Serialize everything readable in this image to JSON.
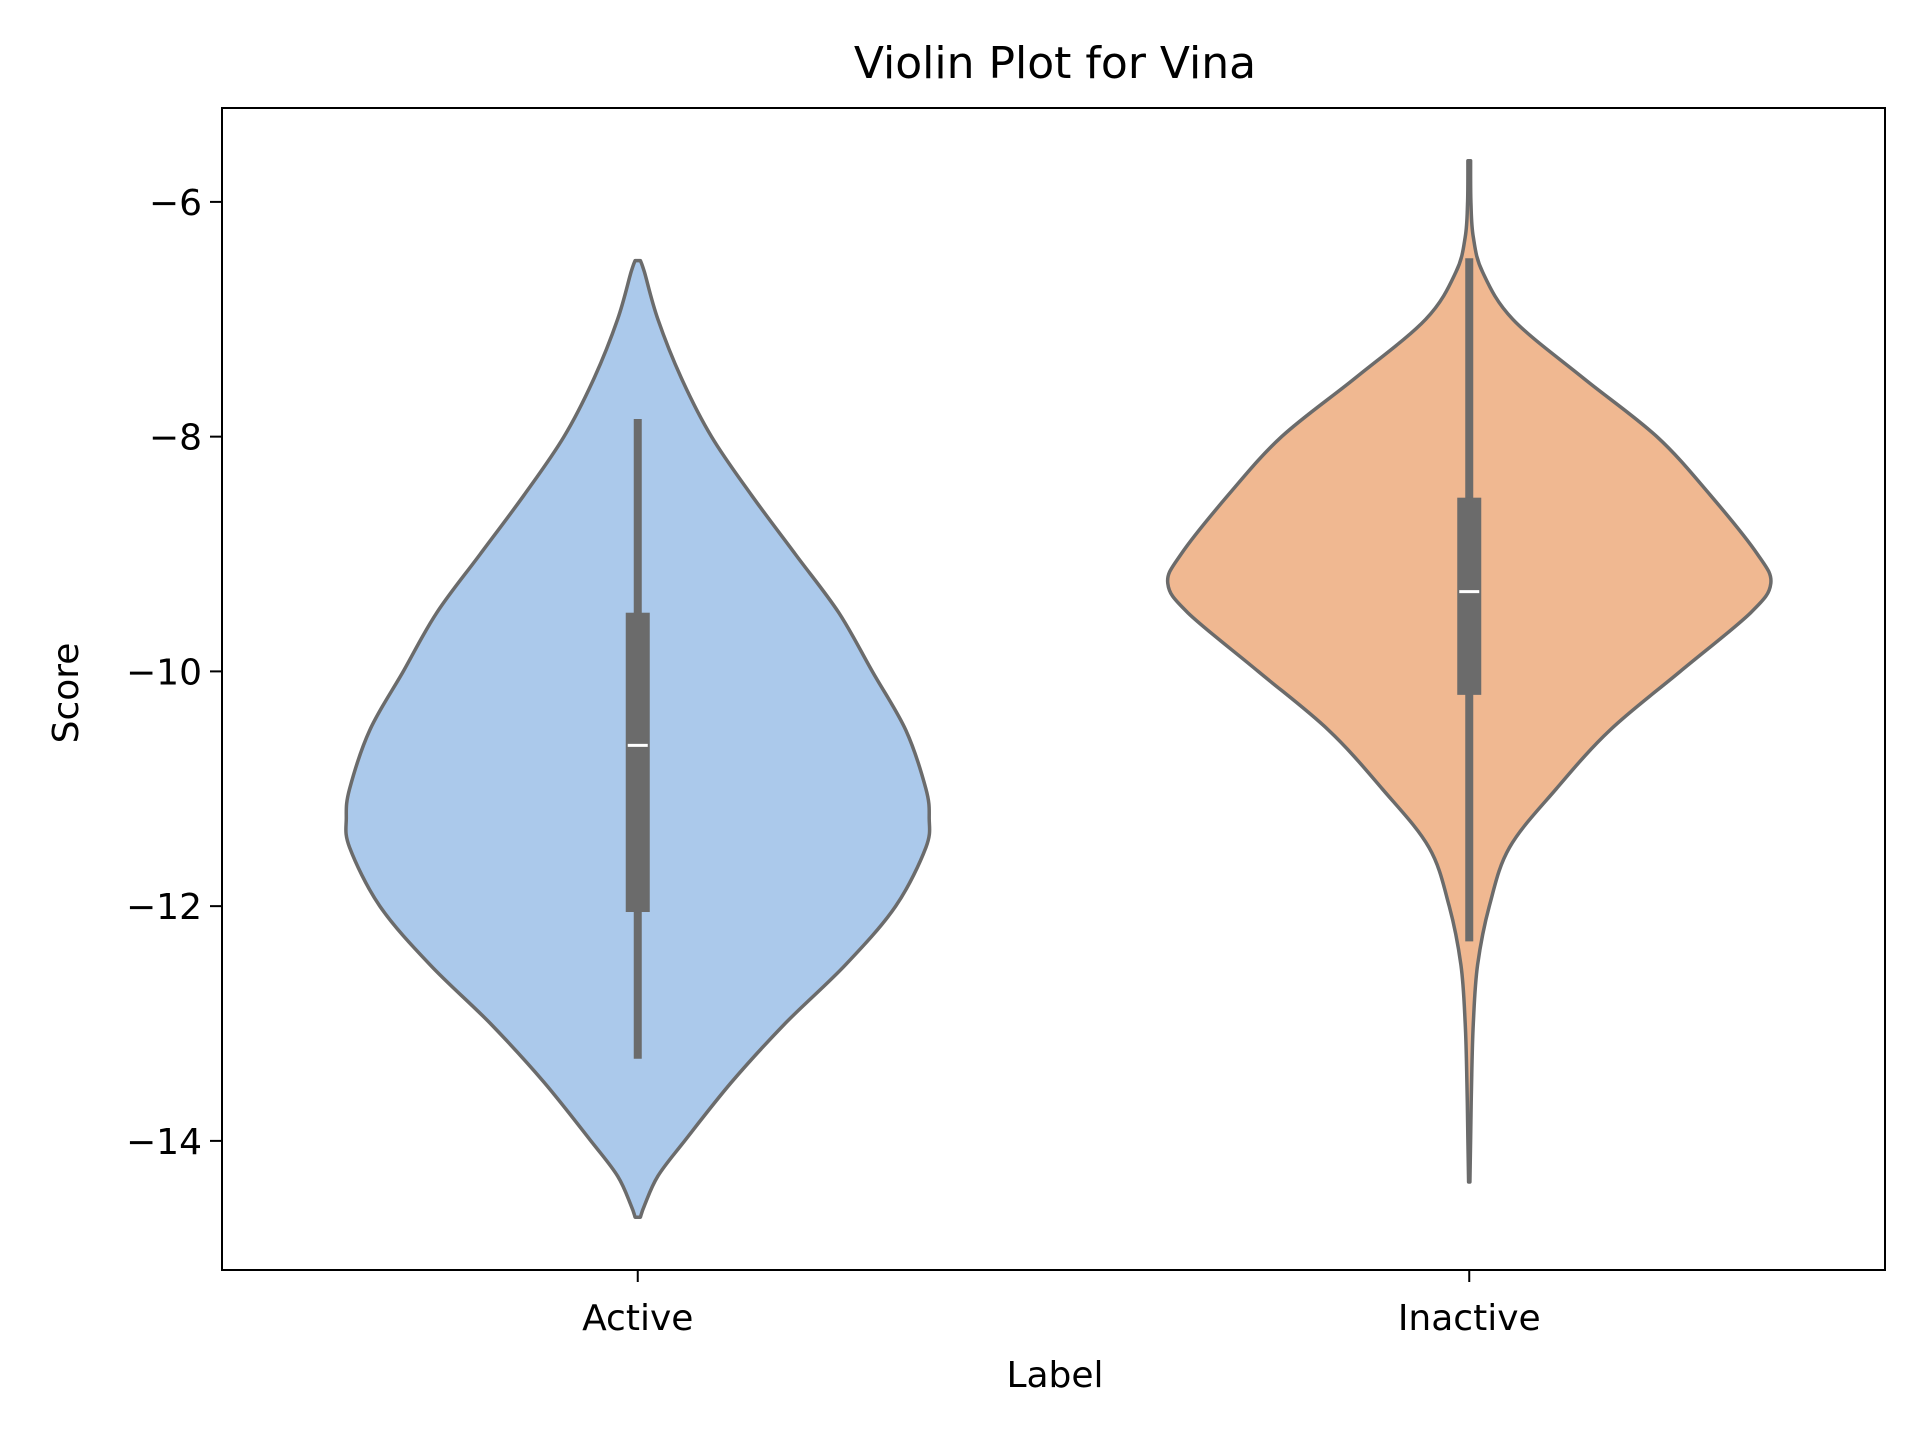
{
  "chart_data": {
    "type": "violin",
    "title": "Violin Plot for Vina",
    "xlabel": "Label",
    "ylabel": "Score",
    "ylim": [
      -15.1,
      -5.2
    ],
    "yticks": [
      -6,
      -8,
      -10,
      -12,
      -14
    ],
    "ytick_labels": [
      "−6",
      "−8",
      "−10",
      "−12",
      "−14"
    ],
    "categories": [
      "Active",
      "Inactive"
    ],
    "grid": false,
    "series": [
      {
        "category": "Active",
        "color": "#abc9eb",
        "min": -13.3,
        "q1": -12.05,
        "median": -10.63,
        "q3": -9.5,
        "max": -7.85,
        "kde_top": -6.5,
        "kde_bottom": -14.65,
        "density": [
          [
            -6.5,
            0.008
          ],
          [
            -6.6,
            0.02
          ],
          [
            -7.0,
            0.06
          ],
          [
            -7.5,
            0.13
          ],
          [
            -8.0,
            0.22
          ],
          [
            -8.5,
            0.34
          ],
          [
            -9.0,
            0.47
          ],
          [
            -9.5,
            0.6
          ],
          [
            -10.0,
            0.7
          ],
          [
            -10.5,
            0.8
          ],
          [
            -11.0,
            0.86
          ],
          [
            -11.25,
            0.87
          ],
          [
            -11.5,
            0.86
          ],
          [
            -12.0,
            0.77
          ],
          [
            -12.5,
            0.62
          ],
          [
            -13.0,
            0.44
          ],
          [
            -13.5,
            0.28
          ],
          [
            -14.0,
            0.14
          ],
          [
            -14.3,
            0.06
          ],
          [
            -14.55,
            0.02
          ],
          [
            -14.65,
            0.008
          ]
        ]
      },
      {
        "category": "Inactive",
        "color": "#f0b891",
        "min": -12.3,
        "q1": -10.2,
        "median": -9.32,
        "q3": -8.52,
        "max": -6.48,
        "kde_top": -5.65,
        "kde_bottom": -14.35,
        "density": [
          [
            -5.65,
            0.004
          ],
          [
            -6.0,
            0.005
          ],
          [
            -6.3,
            0.012
          ],
          [
            -6.6,
            0.04
          ],
          [
            -7.0,
            0.13
          ],
          [
            -7.5,
            0.34
          ],
          [
            -8.0,
            0.56
          ],
          [
            -8.5,
            0.72
          ],
          [
            -9.0,
            0.86
          ],
          [
            -9.25,
            0.9
          ],
          [
            -9.5,
            0.84
          ],
          [
            -10.0,
            0.63
          ],
          [
            -10.5,
            0.42
          ],
          [
            -11.0,
            0.26
          ],
          [
            -11.5,
            0.12
          ],
          [
            -12.0,
            0.06
          ],
          [
            -12.5,
            0.025
          ],
          [
            -13.0,
            0.012
          ],
          [
            -13.5,
            0.007
          ],
          [
            -14.0,
            0.004
          ],
          [
            -14.35,
            0.002
          ]
        ]
      }
    ]
  },
  "colors": {
    "edge": "#6b6b6b",
    "box": "#6b6b6b",
    "median": "#ffffff",
    "axis": "#000000"
  }
}
